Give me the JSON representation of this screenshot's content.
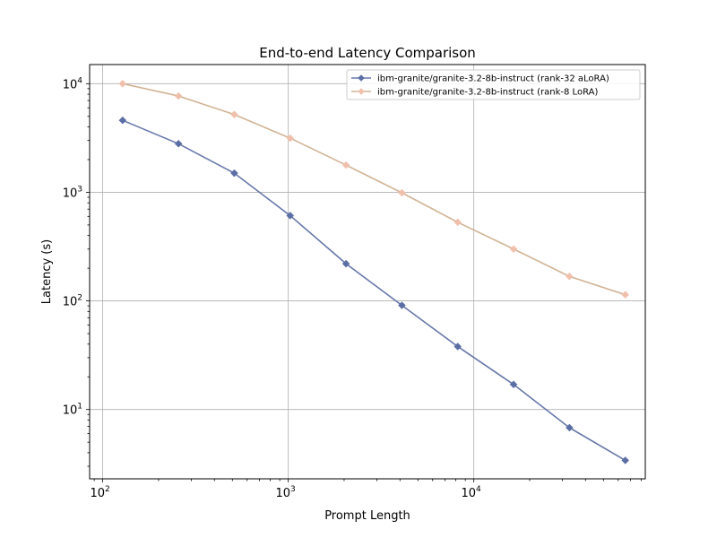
{
  "chart_data": {
    "type": "line",
    "title": "End-to-end Latency Comparison",
    "xlabel": "Prompt Length",
    "ylabel": "Latency (s)",
    "xscale": "log",
    "yscale": "log",
    "xlim": [
      85,
      84000
    ],
    "ylim": [
      2.3,
      15000
    ],
    "grid": true,
    "legend": "top-right",
    "x_ticks": [
      {
        "base": "10",
        "exp": "2",
        "value": 100
      },
      {
        "base": "10",
        "exp": "3",
        "value": 1000
      },
      {
        "base": "10",
        "exp": "4",
        "value": 10000
      }
    ],
    "y_ticks": [
      {
        "base": "10",
        "exp": "1",
        "value": 10
      },
      {
        "base": "10",
        "exp": "2",
        "value": 100
      },
      {
        "base": "10",
        "exp": "3",
        "value": 1000
      },
      {
        "base": "10",
        "exp": "4",
        "value": 10000
      }
    ],
    "x": [
      128,
      256,
      512,
      1024,
      2048,
      4096,
      8192,
      16384,
      32768,
      65536
    ],
    "series": [
      {
        "name": "ibm-granite/granite-3.2-8b-instruct (rank-32 aLoRA)",
        "line_color": "#6677aa",
        "marker_color": "#5b6ea5",
        "values": [
          4600,
          2800,
          1500,
          610,
          220,
          91,
          38,
          17,
          6.8,
          3.4
        ]
      },
      {
        "name": "ibm-granite/granite-3.2-8b-instruct (rank-8 LoRA)",
        "line_color": "#d2b496",
        "marker_color": "#f0c0ac",
        "values": [
          10000,
          7700,
          5200,
          3150,
          1780,
          990,
          530,
          300,
          168,
          114
        ]
      }
    ]
  }
}
